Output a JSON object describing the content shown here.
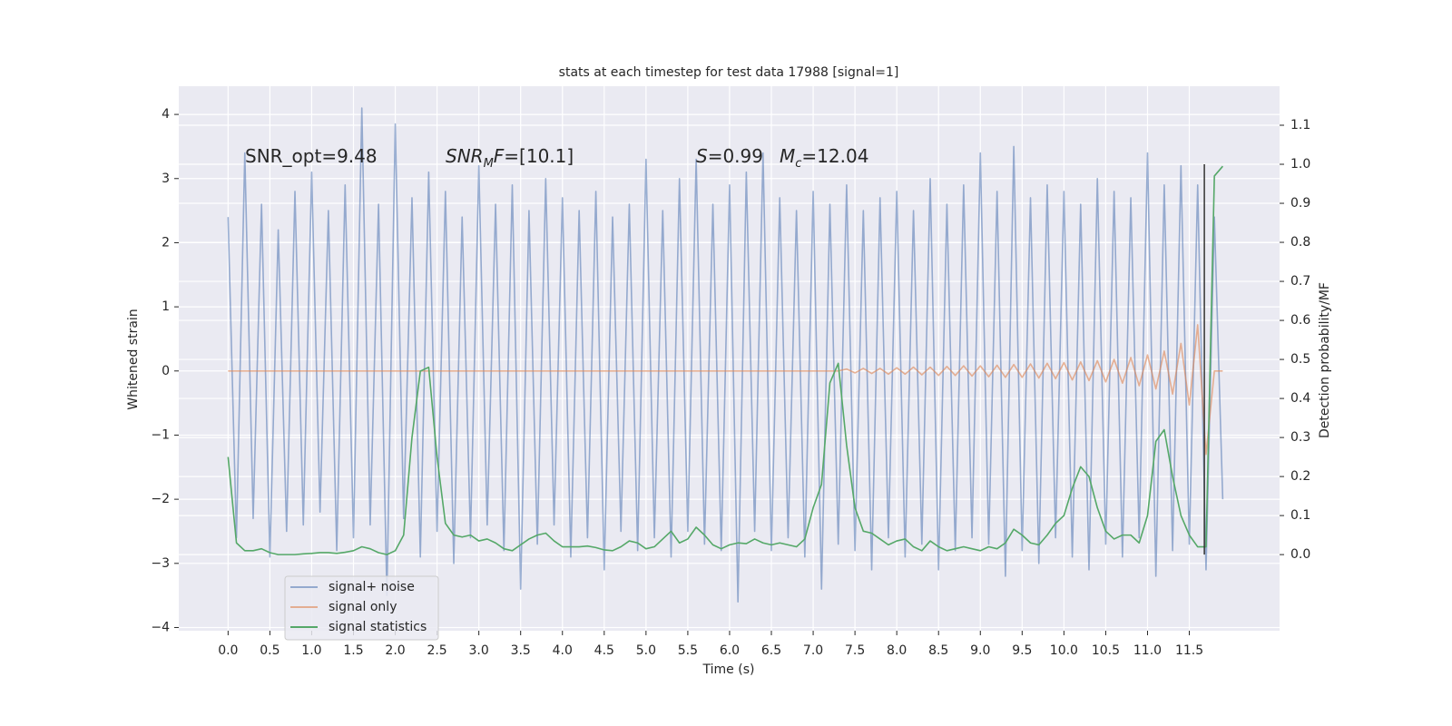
{
  "chart_data": {
    "type": "line",
    "title": "stats at each timestep for test data 17988 [signal=1]",
    "x_label": "Time (s)",
    "y_label": "Whitened strain",
    "y2_label": "Detection probability/MF",
    "xlim": [
      -0.59,
      12.58
    ],
    "ylim": [
      -4.05,
      4.44
    ],
    "y2lim": [
      -0.195,
      1.2
    ],
    "xticks": [
      {
        "value": 0,
        "label": "0.0"
      },
      0.5,
      {
        "value": 1,
        "label": "1.0"
      },
      1.5,
      {
        "value": 2,
        "label": "2.0"
      },
      2.5,
      {
        "value": 3,
        "label": "3.0"
      },
      3.5,
      {
        "value": 4,
        "label": "4.0"
      },
      4.5,
      {
        "value": 5,
        "label": "5.0"
      },
      5.5,
      {
        "value": 6,
        "label": "6.0"
      },
      6.5,
      {
        "value": 7,
        "label": "7.0"
      },
      7.5,
      {
        "value": 8,
        "label": "8.0"
      },
      8.5,
      {
        "value": 9,
        "label": "9.0"
      },
      9.5,
      {
        "value": 10,
        "label": "10.0"
      },
      10.5,
      {
        "value": 11,
        "label": "11.0"
      },
      11.5
    ],
    "yticks": [
      {
        "value": -4,
        "label": "−4"
      },
      {
        "value": -3,
        "label": "−3"
      },
      {
        "value": -2,
        "label": "−2"
      },
      {
        "value": -1,
        "label": "−1"
      },
      0,
      1,
      2,
      3,
      4
    ],
    "y2ticks": [
      {
        "value": 0,
        "label": "0.0"
      },
      0.1,
      0.2,
      0.3,
      0.4,
      0.5,
      0.6,
      0.7,
      0.8,
      0.9,
      {
        "value": 1,
        "label": "1.0"
      },
      1.1
    ],
    "grid": true,
    "legend": "lower left",
    "x": [
      0.0,
      0.1,
      0.2,
      0.3,
      0.4,
      0.5,
      0.6,
      0.7,
      0.8,
      0.9,
      1.0,
      1.1,
      1.2,
      1.3,
      1.4,
      1.5,
      1.6,
      1.7,
      1.8,
      1.9,
      2.0,
      2.1,
      2.2,
      2.3,
      2.4,
      2.5,
      2.6,
      2.7,
      2.8,
      2.9,
      3.0,
      3.1,
      3.2,
      3.3,
      3.4,
      3.5,
      3.6,
      3.7,
      3.8,
      3.9,
      4.0,
      4.1,
      4.2,
      4.3,
      4.4,
      4.5,
      4.6,
      4.7,
      4.8,
      4.9,
      5.0,
      5.1,
      5.2,
      5.3,
      5.4,
      5.5,
      5.6,
      5.7,
      5.8,
      5.9,
      6.0,
      6.1,
      6.2,
      6.3,
      6.4,
      6.5,
      6.6,
      6.7,
      6.8,
      6.9,
      7.0,
      7.1,
      7.2,
      7.3,
      7.4,
      7.5,
      7.6,
      7.7,
      7.8,
      7.9,
      8.0,
      8.1,
      8.2,
      8.3,
      8.4,
      8.5,
      8.6,
      8.7,
      8.8,
      8.9,
      9.0,
      9.1,
      9.2,
      9.3,
      9.4,
      9.5,
      9.6,
      9.7,
      9.8,
      9.9,
      10.0,
      10.1,
      10.2,
      10.3,
      10.4,
      10.5,
      10.6,
      10.7,
      10.8,
      10.9,
      11.0,
      11.1,
      11.2,
      11.3,
      11.4,
      11.5,
      11.6,
      11.7,
      11.8,
      11.9
    ],
    "series": [
      {
        "name": "signal+ noise",
        "color": "#4c72b0",
        "opacity": 0.55,
        "values": [
          2.4,
          -2.6,
          3.4,
          -2.3,
          2.6,
          -2.9,
          2.2,
          -2.5,
          2.8,
          -2.4,
          3.1,
          -2.2,
          2.5,
          -2.8,
          2.9,
          -2.6,
          4.1,
          -2.4,
          2.6,
          -3.5,
          3.85,
          -2.3,
          2.7,
          -2.9,
          3.1,
          -2.5,
          2.8,
          -3.0,
          2.4,
          -2.6,
          3.2,
          -2.4,
          2.6,
          -2.8,
          2.9,
          -3.4,
          2.5,
          -2.7,
          3.0,
          -2.4,
          2.7,
          -2.9,
          2.5,
          -2.6,
          2.8,
          -3.1,
          2.4,
          -2.5,
          2.6,
          -2.8,
          3.3,
          -2.6,
          2.5,
          -2.9,
          3.0,
          -2.5,
          3.3,
          -2.7,
          2.6,
          -2.8,
          2.9,
          -3.6,
          3.1,
          -2.5,
          3.4,
          -2.8,
          2.7,
          -2.6,
          2.5,
          -2.9,
          2.8,
          -3.4,
          2.6,
          -2.7,
          2.9,
          -2.8,
          2.5,
          -3.1,
          2.7,
          -2.6,
          2.8,
          -2.9,
          2.5,
          -2.7,
          3.0,
          -3.1,
          2.6,
          -2.8,
          2.9,
          -2.6,
          3.4,
          -2.7,
          2.8,
          -3.2,
          3.5,
          -2.8,
          2.7,
          -3.0,
          2.9,
          -2.6,
          2.8,
          -2.9,
          2.6,
          -3.1,
          3.0,
          -2.7,
          2.8,
          -2.9,
          2.7,
          -2.6,
          3.4,
          -3.2,
          2.9,
          -2.8,
          3.2,
          -2.7,
          2.9,
          -3.1,
          2.4,
          -2.0
        ]
      },
      {
        "name": "signal only",
        "color": "#dd8452",
        "opacity": 0.6,
        "values": [
          0,
          0,
          0,
          0,
          0,
          0,
          0,
          0,
          0,
          0,
          0,
          0,
          0,
          0,
          0,
          0,
          0,
          0,
          0,
          0,
          0,
          0,
          0,
          0,
          0,
          0,
          0,
          0,
          0,
          0,
          0,
          0,
          0,
          0,
          0,
          0,
          0,
          0,
          0,
          0,
          0,
          0,
          0,
          0,
          0,
          0,
          0,
          0,
          0,
          0,
          0,
          0,
          0,
          0,
          0,
          0,
          0,
          0,
          0,
          0,
          0,
          0,
          0,
          0,
          0,
          0,
          0,
          0,
          0,
          0,
          0,
          0,
          0,
          0,
          0.03,
          -0.03,
          0.04,
          -0.04,
          0.04,
          -0.05,
          0.05,
          -0.05,
          0.06,
          -0.06,
          0.06,
          -0.07,
          0.07,
          -0.07,
          0.08,
          -0.08,
          0.08,
          -0.09,
          0.09,
          -0.1,
          0.1,
          -0.1,
          0.11,
          -0.11,
          0.12,
          -0.12,
          0.13,
          -0.14,
          0.14,
          -0.15,
          0.16,
          -0.17,
          0.18,
          -0.19,
          0.21,
          -0.23,
          0.25,
          -0.28,
          0.31,
          -0.36,
          0.43,
          -0.53,
          0.72,
          -1.3,
          0,
          0
        ]
      },
      {
        "name": "signal statistics",
        "color": "#55a868",
        "opacity": 1,
        "axis": "y2",
        "values": [
          0.25,
          0.03,
          0.01,
          0.01,
          0.015,
          0.005,
          0.0,
          0.0,
          0.0,
          0.002,
          0.003,
          0.005,
          0.005,
          0.003,
          0.006,
          0.01,
          0.02,
          0.015,
          0.005,
          0.0,
          0.01,
          0.05,
          0.3,
          0.47,
          0.48,
          0.25,
          0.08,
          0.05,
          0.045,
          0.05,
          0.035,
          0.04,
          0.03,
          0.015,
          0.01,
          0.025,
          0.04,
          0.05,
          0.055,
          0.035,
          0.02,
          0.02,
          0.02,
          0.022,
          0.018,
          0.012,
          0.01,
          0.02,
          0.035,
          0.03,
          0.015,
          0.02,
          0.04,
          0.06,
          0.03,
          0.04,
          0.07,
          0.05,
          0.025,
          0.015,
          0.025,
          0.03,
          0.028,
          0.04,
          0.03,
          0.025,
          0.03,
          0.025,
          0.02,
          0.04,
          0.12,
          0.18,
          0.44,
          0.49,
          0.28,
          0.12,
          0.06,
          0.055,
          0.04,
          0.025,
          0.035,
          0.04,
          0.02,
          0.01,
          0.035,
          0.02,
          0.01,
          0.015,
          0.02,
          0.015,
          0.01,
          0.02,
          0.015,
          0.03,
          0.065,
          0.05,
          0.03,
          0.025,
          0.05,
          0.08,
          0.1,
          0.17,
          0.225,
          0.2,
          0.12,
          0.06,
          0.04,
          0.05,
          0.05,
          0.03,
          0.1,
          0.29,
          0.32,
          0.2,
          0.1,
          0.05,
          0.02,
          0.02,
          0.97,
          0.995
        ]
      }
    ],
    "vline": {
      "x": 11.68,
      "y2": [
        0,
        1.0
      ],
      "color": "#333333"
    },
    "annotations": [
      [
        {
          "text": "SNR_opt=9.48",
          "style": "normal"
        }
      ],
      [
        {
          "text": "SNR",
          "style": "italic"
        },
        {
          "text": "M",
          "style": "sub"
        },
        {
          "text": "F",
          "style": "italic"
        },
        {
          "text": "=[10.1]",
          "style": "normal"
        }
      ],
      [
        {
          "text": "S",
          "style": "italic"
        },
        {
          "text": "=0.99",
          "style": "normal"
        }
      ],
      [
        {
          "text": "M",
          "style": "italic"
        },
        {
          "text": "c",
          "style": "sub"
        },
        {
          "text": "=12.04",
          "style": "normal"
        }
      ]
    ]
  }
}
